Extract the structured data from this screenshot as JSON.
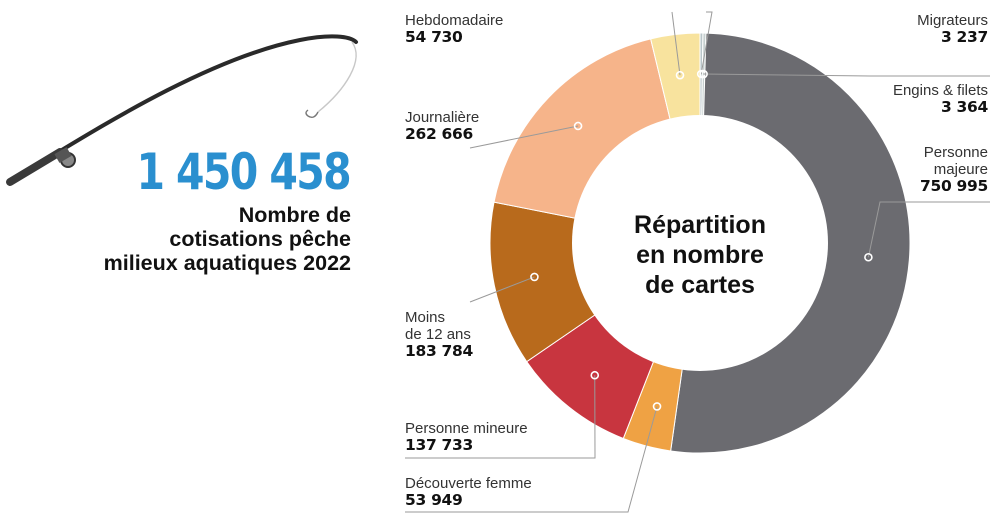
{
  "headline": {
    "total": "1 450 458",
    "subtitle_lines": [
      "Nombre de",
      "cotisations pêche",
      "milieux aquatiques 2022"
    ]
  },
  "chart_data": {
    "type": "pie",
    "title": "Répartition en nombre de cartes",
    "title_lines": [
      "Répartition",
      "en nombre",
      "de cartes"
    ],
    "slices": [
      {
        "label": "Migrateurs",
        "label_lines": [
          "Migrateurs"
        ],
        "value": 3237,
        "value_text": "3 237",
        "color": "#b9c6c9"
      },
      {
        "label": "Engins & filets",
        "label_lines": [
          "Engins & filets"
        ],
        "value": 3364,
        "value_text": "3 364",
        "color": "#c7d0cf"
      },
      {
        "label": "Personne majeure",
        "label_lines": [
          "Personne",
          "majeure"
        ],
        "value": 750995,
        "value_text": "750 995",
        "color": "#6b6b70"
      },
      {
        "label": "Découverte femme",
        "label_lines": [
          "Découverte femme"
        ],
        "value": 53949,
        "value_text": "53 949",
        "color": "#efa244"
      },
      {
        "label": "Personne mineure",
        "label_lines": [
          "Personne mineure"
        ],
        "value": 137733,
        "value_text": "137 733",
        "color": "#c8353f"
      },
      {
        "label": "Moins de 12 ans",
        "label_lines": [
          "Moins",
          "de 12 ans"
        ],
        "value": 183784,
        "value_text": "183 784",
        "color": "#b86a1c"
      },
      {
        "label": "Journalière",
        "label_lines": [
          "Journalière"
        ],
        "value": 262666,
        "value_text": "262 666",
        "color": "#f6b48a"
      },
      {
        "label": "Hebdomadaire",
        "label_lines": [
          "Hebdomadaire"
        ],
        "value": 54730,
        "value_text": "54 730",
        "color": "#f8e39e"
      }
    ]
  }
}
